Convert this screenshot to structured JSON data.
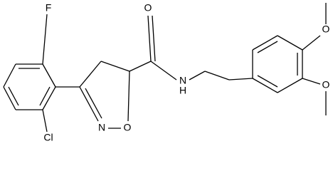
{
  "nodes": [
    {
      "label": "F"
    },
    {
      "label": "Cl"
    },
    {
      "label": "N"
    },
    {
      "label": "O"
    },
    {
      "label": "O"
    },
    {
      "label": "N"
    },
    {
      "label": "H"
    },
    {
      "label": "O"
    },
    {
      "label": "O"
    }
  ]
}
